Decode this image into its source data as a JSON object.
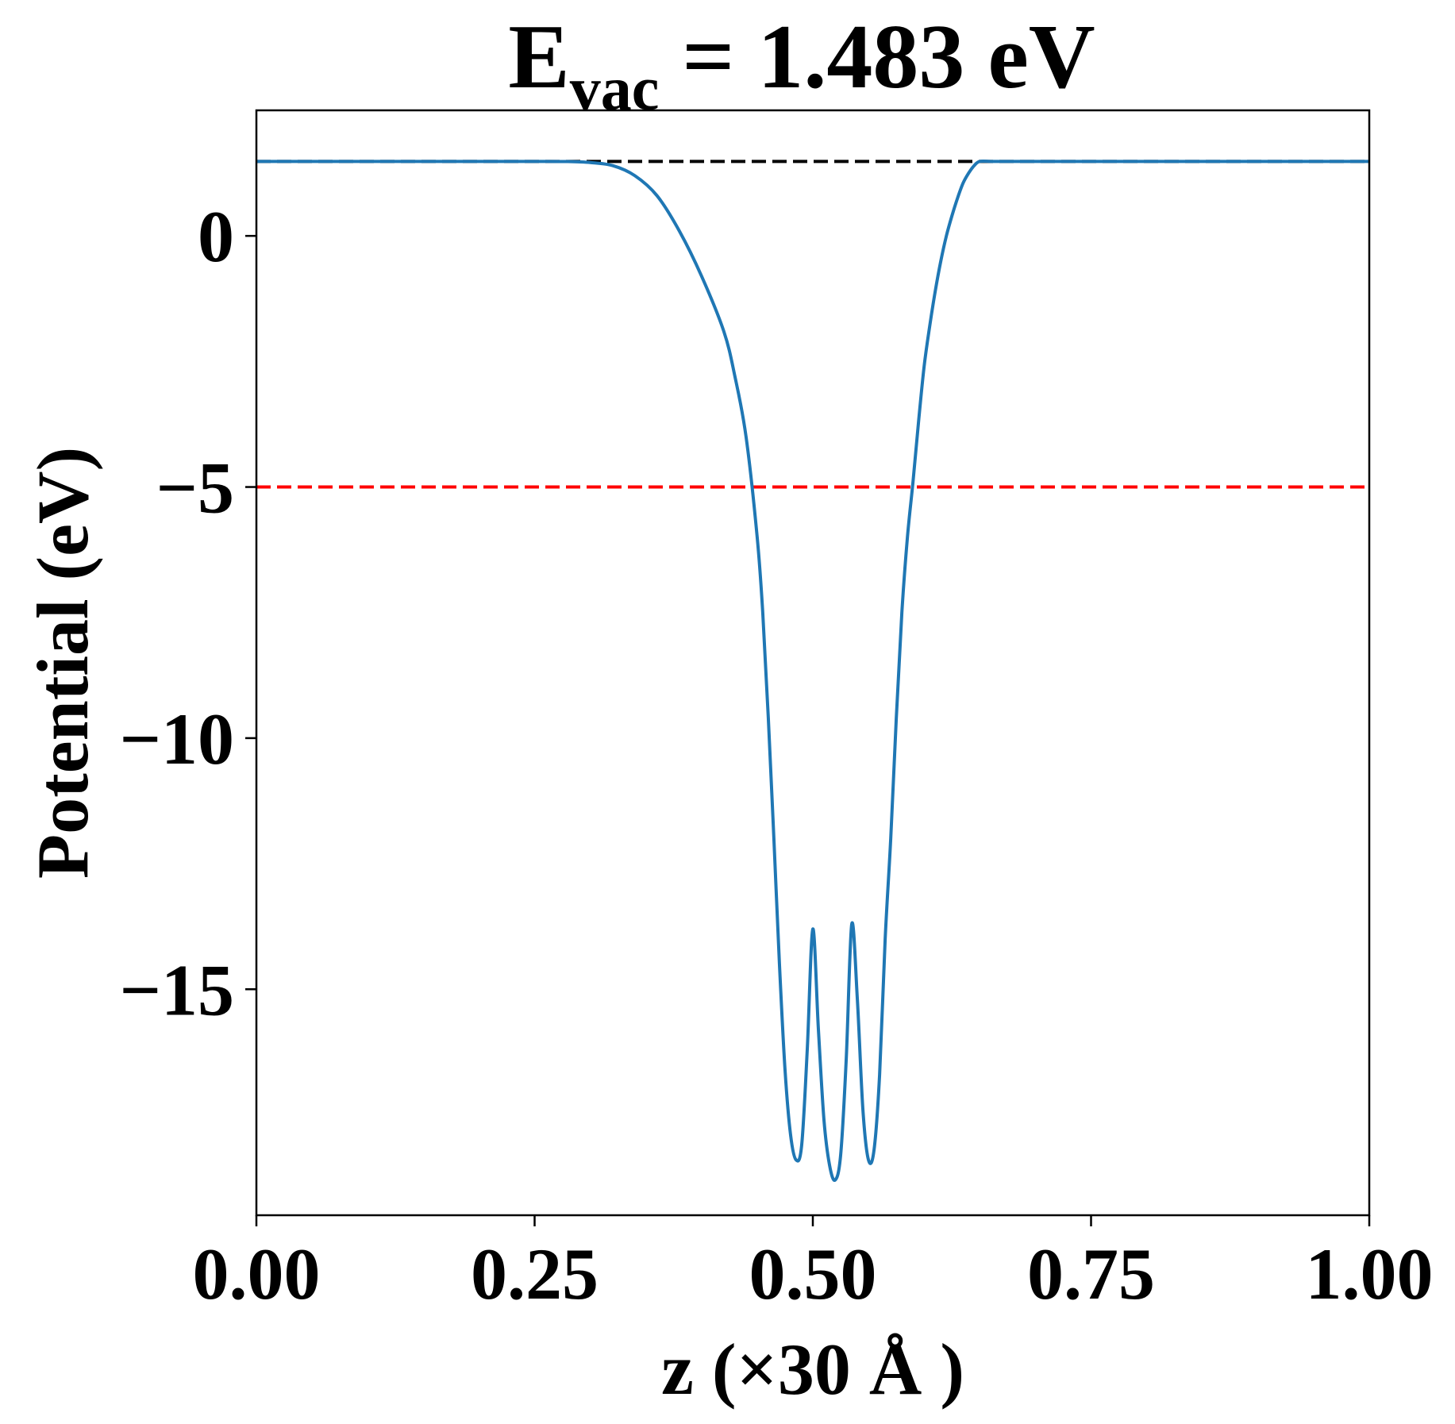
{
  "chart_data": {
    "type": "line",
    "title": {
      "main": "E",
      "subscript": "vac",
      "rest": " = 1.483 eV"
    },
    "xlabel": "z (×30 Å )",
    "ylabel": "Potential (eV)",
    "xlim": [
      0.0,
      1.0
    ],
    "ylim": [
      -19.5,
      2.5
    ],
    "xticks": [
      0.0,
      0.25,
      0.5,
      0.75,
      1.0
    ],
    "xtick_labels": [
      "0.00",
      "0.25",
      "0.50",
      "0.75",
      "1.00"
    ],
    "yticks": [
      0,
      -5,
      -10,
      -15
    ],
    "ytick_labels": [
      "0",
      "−5",
      "−10",
      "−15"
    ],
    "grid": false,
    "series": [
      {
        "color": "#1f77b4",
        "x": [
          0.0,
          0.05,
          0.1,
          0.15,
          0.2,
          0.25,
          0.28,
          0.3,
          0.32,
          0.34,
          0.36,
          0.38,
          0.4,
          0.42,
          0.43,
          0.44,
          0.45,
          0.455,
          0.46,
          0.465,
          0.47,
          0.475,
          0.48,
          0.485,
          0.49,
          0.495,
          0.5,
          0.505,
          0.51,
          0.515,
          0.52,
          0.525,
          0.53,
          0.535,
          0.54,
          0.545,
          0.55,
          0.555,
          0.56,
          0.565,
          0.57,
          0.575,
          0.58,
          0.585,
          0.59,
          0.595,
          0.6,
          0.605,
          0.61,
          0.615,
          0.62,
          0.625,
          0.63,
          0.635,
          0.64,
          0.645,
          0.65,
          0.66,
          0.67,
          0.68,
          0.7,
          0.72,
          0.74,
          0.76,
          0.78,
          0.8,
          0.82,
          0.85,
          0.9,
          0.95,
          1.0
        ],
        "y": [
          1.483,
          1.483,
          1.483,
          1.483,
          1.483,
          1.483,
          1.48,
          1.46,
          1.4,
          1.2,
          0.8,
          0.1,
          -0.8,
          -1.9,
          -2.8,
          -4.0,
          -6.0,
          -7.5,
          -9.6,
          -12.0,
          -14.5,
          -16.6,
          -17.9,
          -18.4,
          -18.1,
          -16.2,
          -13.8,
          -15.8,
          -17.6,
          -18.5,
          -18.8,
          -18.3,
          -16.4,
          -13.7,
          -15.2,
          -17.4,
          -18.4,
          -18.2,
          -16.7,
          -14.0,
          -12.0,
          -9.6,
          -7.5,
          -6.0,
          -4.9,
          -3.7,
          -2.6,
          -1.8,
          -1.1,
          -0.5,
          0.0,
          0.4,
          0.75,
          1.05,
          1.25,
          1.4,
          1.483,
          1.483,
          1.483,
          1.483,
          1.483,
          1.483,
          1.483,
          1.483,
          1.483,
          1.483,
          1.483,
          1.483,
          1.483,
          1.483,
          1.483
        ]
      }
    ],
    "reference_lines": [
      {
        "y": 1.483,
        "color": "#000000",
        "style": "dashed"
      },
      {
        "y": -5.0,
        "color": "#ff0000",
        "style": "dashed"
      }
    ]
  }
}
